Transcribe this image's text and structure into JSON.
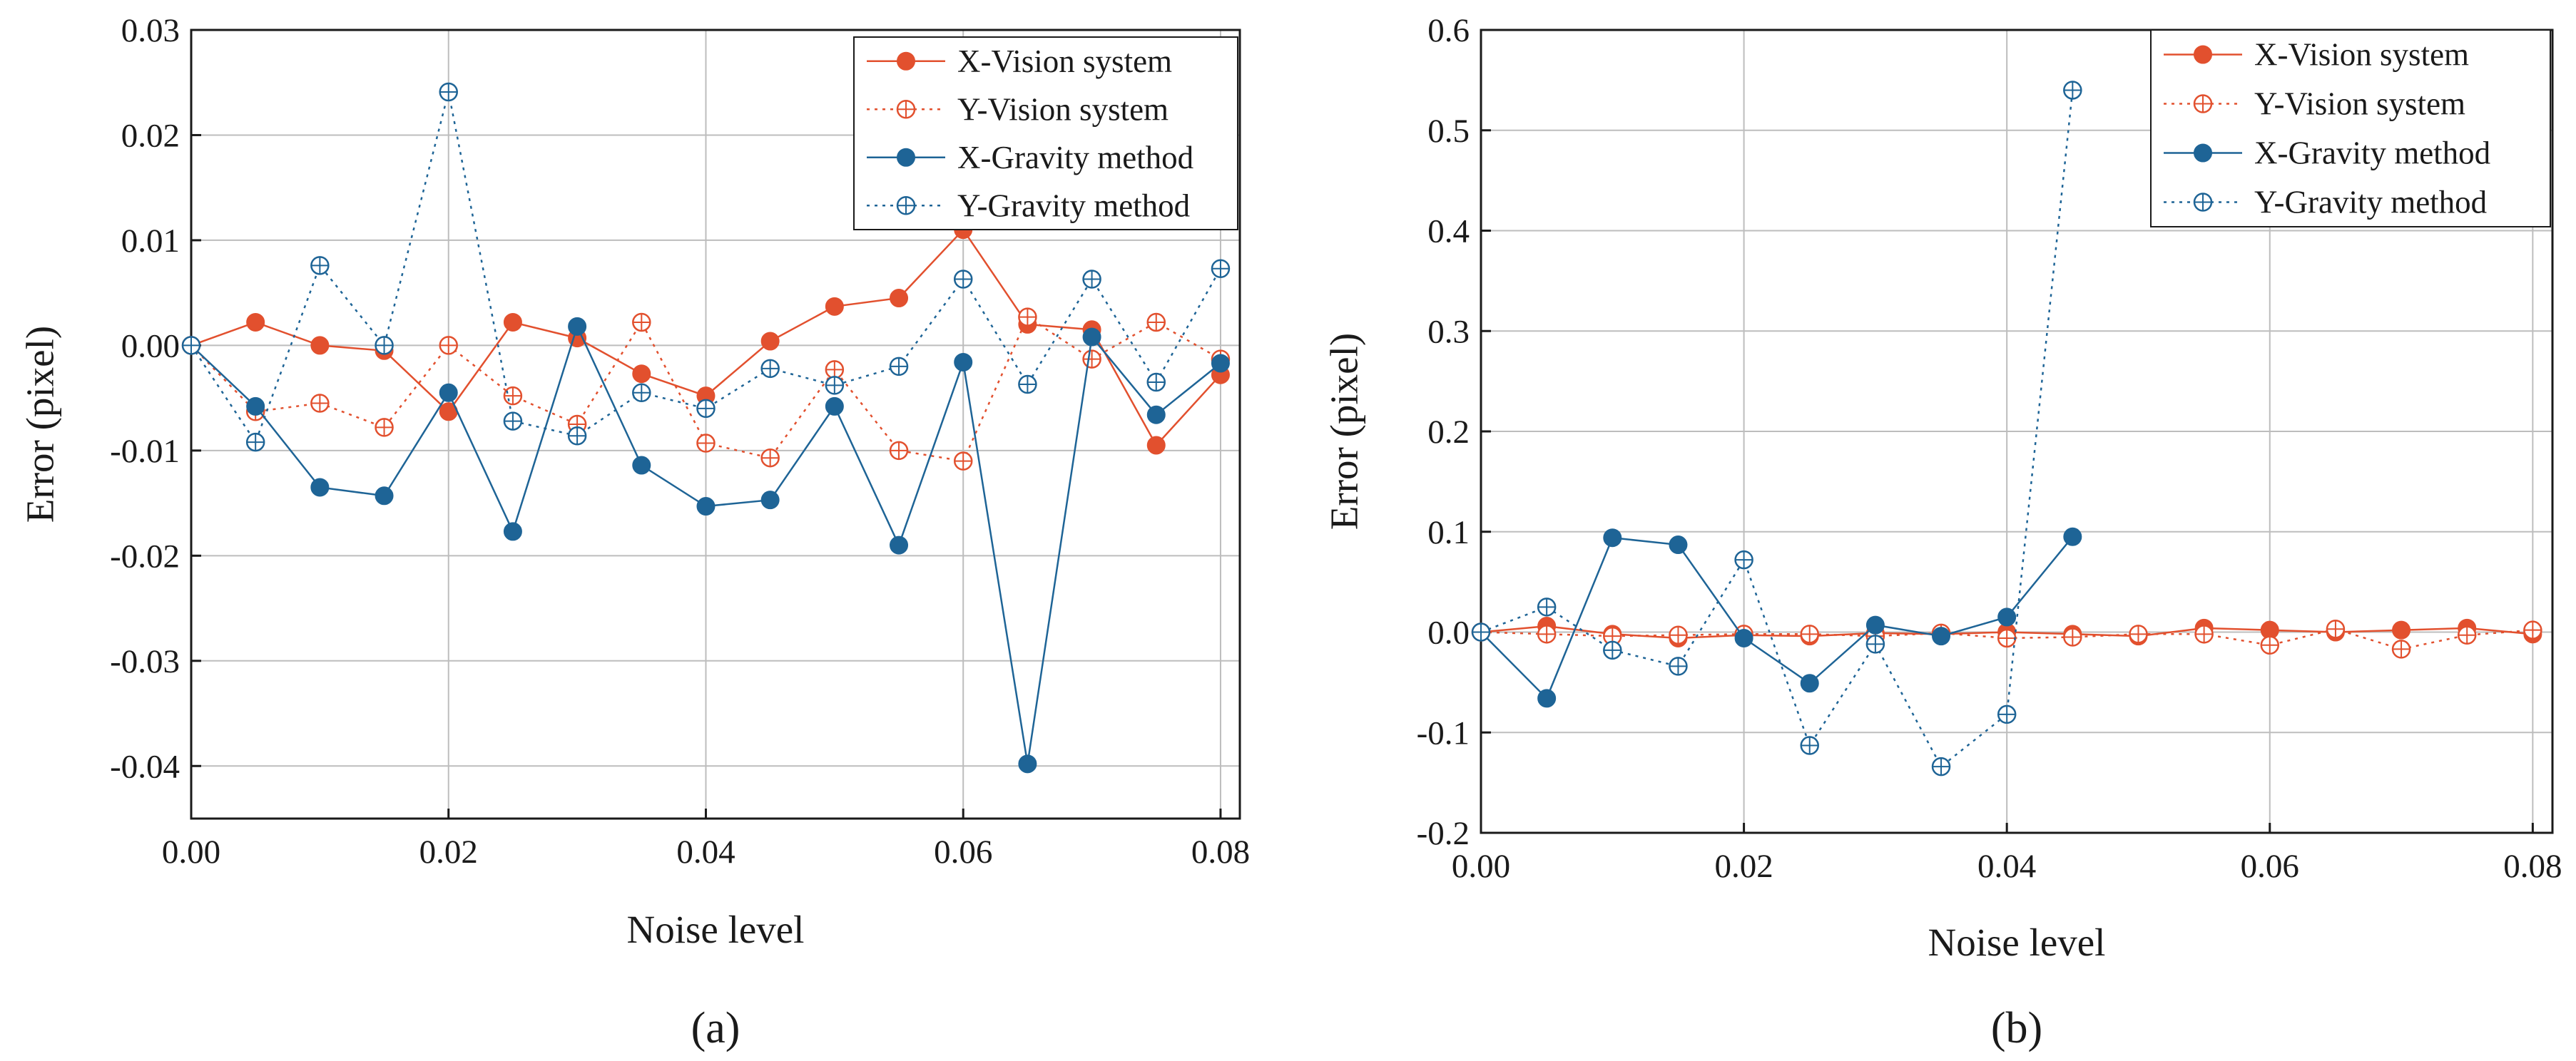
{
  "figure": {
    "colors": {
      "vision": "#E2502E",
      "gravity": "#1E6496",
      "grid": "#bdbdbd",
      "axis": "#1a1a1a"
    }
  },
  "chart_data": [
    {
      "type": "line",
      "panel_label": "(a)",
      "xlabel": "Noise level",
      "ylabel": "Error (pixel)",
      "xlim": [
        0,
        0.0815
      ],
      "ylim": [
        -0.045,
        0.03
      ],
      "xticks": [
        0,
        0.02,
        0.04,
        0.06,
        0.08
      ],
      "xtick_labels": [
        "0.00",
        "0.02",
        "0.04",
        "0.06",
        "0.08"
      ],
      "yticks": [
        -0.04,
        -0.03,
        -0.02,
        -0.01,
        0,
        0.01,
        0.02,
        0.03
      ],
      "ytick_labels": [
        "-0.04",
        "-0.03",
        "-0.02",
        "-0.01",
        "0.00",
        "0.01",
        "0.02",
        "0.03"
      ],
      "grid": true,
      "legend_position": "top-right",
      "x": [
        0,
        0.005,
        0.01,
        0.015,
        0.02,
        0.025,
        0.03,
        0.035,
        0.04,
        0.045,
        0.05,
        0.055,
        0.06,
        0.065,
        0.07,
        0.075,
        0.08
      ],
      "series": [
        {
          "name": "X-Vision system",
          "color": "#E2502E",
          "style": "solid",
          "marker": "filled",
          "values": [
            0,
            0.0022,
            0,
            -0.0005,
            -0.0063,
            0.0022,
            0.0007,
            -0.0027,
            -0.0048,
            0.0004,
            0.0037,
            0.0045,
            0.011,
            0.002,
            0.0015,
            -0.0095,
            -0.0028
          ]
        },
        {
          "name": "Y-Vision system",
          "color": "#E2502E",
          "style": "dotted",
          "marker": "crosshair",
          "values": [
            0,
            -0.0063,
            -0.0055,
            -0.0078,
            0,
            -0.0048,
            -0.0075,
            0.0022,
            -0.0093,
            -0.0107,
            -0.0023,
            -0.01,
            -0.011,
            0.0027,
            -0.0013,
            0.0022,
            -0.0013
          ]
        },
        {
          "name": "X-Gravity method",
          "color": "#1E6496",
          "style": "solid",
          "marker": "filled",
          "values": [
            0,
            -0.0058,
            -0.0135,
            -0.0143,
            -0.0045,
            -0.0177,
            0.0018,
            -0.0114,
            -0.0153,
            -0.0147,
            -0.0058,
            -0.019,
            -0.0016,
            -0.0398,
            0.0008,
            -0.0066,
            -0.0017
          ]
        },
        {
          "name": "Y-Gravity method",
          "color": "#1E6496",
          "style": "dotted",
          "marker": "crosshair",
          "values": [
            0,
            -0.0092,
            0.0076,
            0,
            0.0241,
            -0.0072,
            -0.0086,
            -0.0045,
            -0.006,
            -0.0022,
            -0.0038,
            -0.002,
            0.0063,
            -0.0037,
            0.0063,
            -0.0035,
            0.0073
          ]
        }
      ]
    },
    {
      "type": "line",
      "panel_label": "(b)",
      "xlabel": "Noise level",
      "ylabel": "Error (pixel)",
      "xlim": [
        0,
        0.0815
      ],
      "ylim": [
        -0.2,
        0.6
      ],
      "xticks": [
        0,
        0.02,
        0.04,
        0.06,
        0.08
      ],
      "xtick_labels": [
        "0.00",
        "0.02",
        "0.04",
        "0.06",
        "0.08"
      ],
      "yticks": [
        -0.2,
        -0.1,
        0,
        0.1,
        0.2,
        0.3,
        0.4,
        0.5,
        0.6
      ],
      "ytick_labels": [
        "-0.2",
        "-0.1",
        "0.0",
        "0.1",
        "0.2",
        "0.3",
        "0.4",
        "0.5",
        "0.6"
      ],
      "grid": true,
      "legend_position": "top-right",
      "x": [
        0,
        0.005,
        0.01,
        0.015,
        0.02,
        0.025,
        0.03,
        0.035,
        0.04,
        0.045,
        0.05,
        0.055,
        0.06,
        0.065,
        0.07,
        0.075,
        0.08
      ],
      "series": [
        {
          "name": "X-Vision system",
          "color": "#E2502E",
          "style": "solid",
          "marker": "filled",
          "values": [
            0,
            0.006,
            -0.002,
            -0.006,
            -0.003,
            -0.004,
            -0.001,
            -0.002,
            0,
            -0.002,
            -0.004,
            0.004,
            0.002,
            0,
            0.002,
            0.004,
            -0.002
          ]
        },
        {
          "name": "Y-Vision system",
          "color": "#E2502E",
          "style": "dotted",
          "marker": "crosshair",
          "values": [
            0,
            -0.002,
            -0.004,
            -0.003,
            -0.002,
            -0.002,
            -0.004,
            -0.001,
            -0.006,
            -0.005,
            -0.002,
            -0.002,
            -0.013,
            0.003,
            -0.017,
            -0.003,
            0.002
          ]
        },
        {
          "name": "X-Gravity method",
          "color": "#1E6496",
          "style": "solid",
          "marker": "filled",
          "values": [
            0,
            -0.066,
            0.094,
            0.087,
            -0.006,
            -0.051,
            0.007,
            -0.004,
            0.015,
            0.095,
            null,
            null,
            null,
            null,
            null,
            null,
            null
          ]
        },
        {
          "name": "Y-Gravity method",
          "color": "#1E6496",
          "style": "dotted",
          "marker": "crosshair",
          "values": [
            0,
            0.025,
            -0.018,
            -0.034,
            0.072,
            -0.113,
            -0.012,
            -0.134,
            -0.082,
            0.54,
            null,
            null,
            null,
            null,
            null,
            null,
            null
          ]
        }
      ]
    }
  ]
}
